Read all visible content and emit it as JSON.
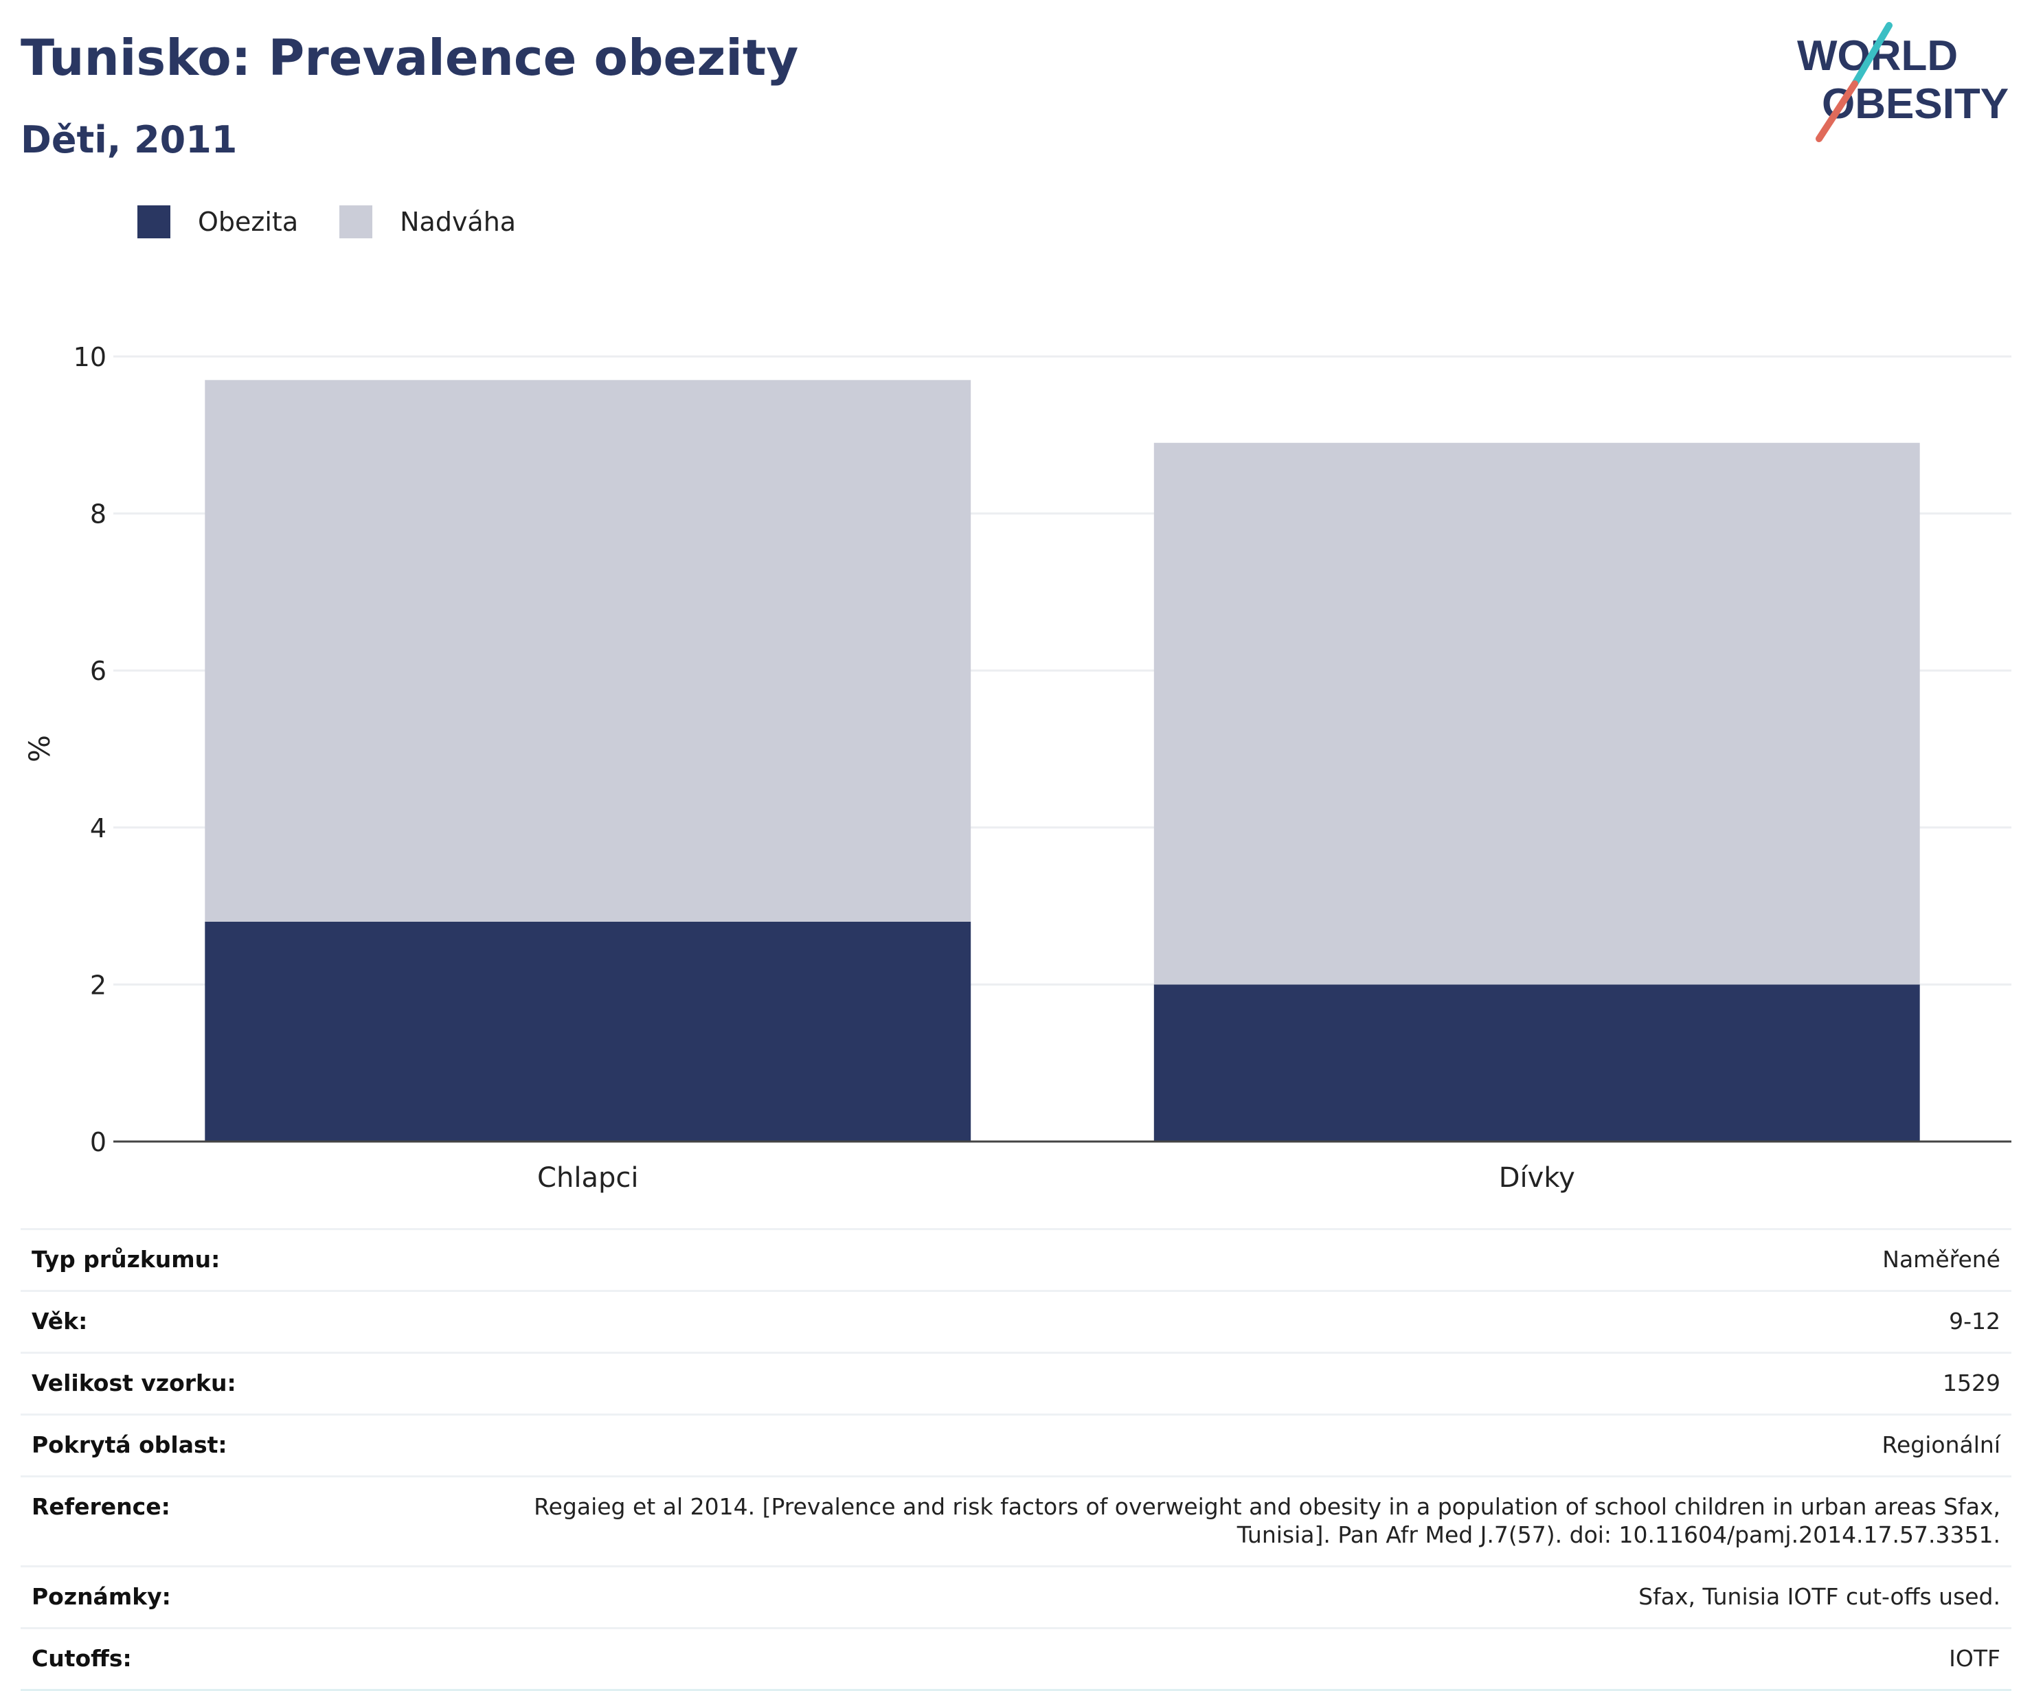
{
  "header": {
    "title": "Tunisko: Prevalence obezity",
    "subtitle": "Děti, 2011"
  },
  "logo": {
    "line1": "WORLD",
    "line2": "OBESITY"
  },
  "colors": {
    "obesity": "#2a3762",
    "overweight": "#cbcdd8",
    "title": "#2a3762",
    "grid": "#eceef1",
    "axis": "#444444",
    "logo_teal": "#3bbfc4",
    "logo_coral": "#e06a5a"
  },
  "chart_data": {
    "type": "bar",
    "stacked": true,
    "categories": [
      "Chlapci",
      "Dívky"
    ],
    "series": [
      {
        "name": "Obezita",
        "values": [
          2.8,
          2.0
        ]
      },
      {
        "name": "Nadváha",
        "values": [
          6.9,
          6.9
        ]
      }
    ],
    "ylabel": "%",
    "ylim": [
      0,
      10
    ],
    "yticks": [
      0,
      2,
      4,
      6,
      8,
      10
    ],
    "grid": true,
    "legend": "top-left"
  },
  "info": [
    {
      "key": "Typ průzkumu:",
      "value": "Naměřené"
    },
    {
      "key": "Věk:",
      "value": "9-12"
    },
    {
      "key": "Velikost vzorku:",
      "value": "1529"
    },
    {
      "key": "Pokrytá oblast:",
      "value": "Regionální"
    },
    {
      "key": "Reference:",
      "value": "Regaieg et al 2014. [Prevalence and risk factors of overweight and obesity in a population of school children in urban areas Sfax, Tunisia]. Pan Afr Med J.7(57). doi: 10.11604/pamj.2014.17.57.3351."
    },
    {
      "key": "Poznámky:",
      "value": "Sfax, Tunisia IOTF cut-offs used."
    },
    {
      "key": "Cutoffs:",
      "value": "IOTF"
    }
  ]
}
